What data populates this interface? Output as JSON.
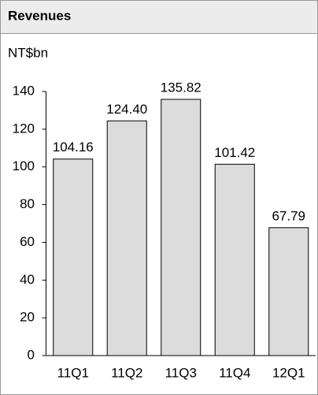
{
  "chart_data": {
    "type": "bar",
    "title": "Revenues",
    "ylabel": "NT$bn",
    "categories": [
      "11Q1",
      "11Q2",
      "11Q3",
      "11Q4",
      "12Q1"
    ],
    "values": [
      104.16,
      124.4,
      135.82,
      101.42,
      67.79
    ],
    "value_labels": [
      "104.16",
      "124.40",
      "135.82",
      "101.42",
      "67.79"
    ],
    "color": "#dcdcdc",
    "ylim": [
      0,
      140
    ],
    "yticks": [
      0,
      20,
      40,
      60,
      80,
      100,
      120,
      140
    ],
    "grid": false
  }
}
